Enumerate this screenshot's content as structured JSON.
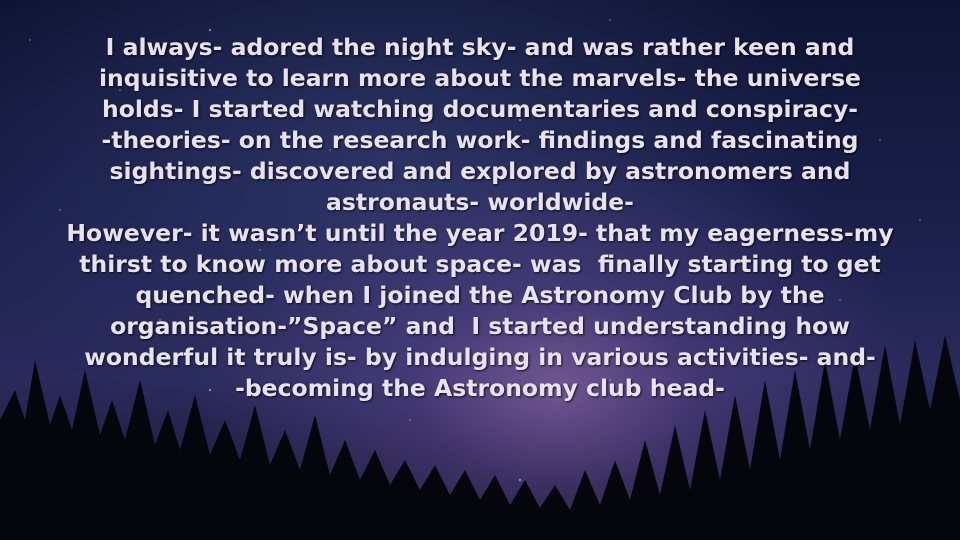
{
  "paragraph_1": [
    "I always- adored the night sky- and was rather keen and",
    "inquisitive to learn more about the marvels- the universe",
    "holds- I started watching documentaries and conspiracy-",
    "-theories- on the research work- findings and fascinating",
    "sightings- discovered and explored by astronomers and",
    "astronauts- worldwide-"
  ],
  "paragraph_2": [
    "However- it wasn’t until the year 2019- that my eagerness-my",
    "thirst to know more about space- was  finally starting to get",
    "quenched- when I joined the Astronomy Club by the",
    "organisation-”Space” and  I started understanding how",
    "wonderful it truly is- by indulging in various activities- and-",
    "-becoming the Astronomy club head-"
  ]
}
